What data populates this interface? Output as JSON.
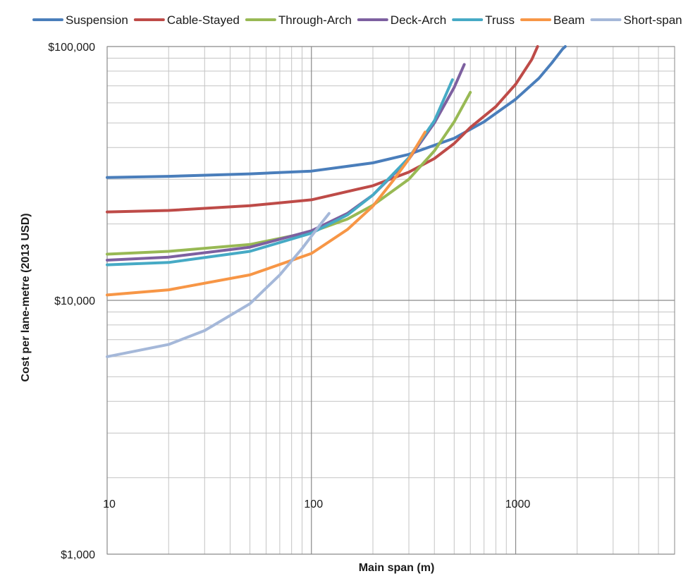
{
  "chart_data": {
    "type": "line",
    "xlabel": "Main span (m)",
    "ylabel": "Cost per lane-metre (2013 USD)",
    "x_scale": "log",
    "y_scale": "log",
    "xlim": [
      10,
      6000
    ],
    "ylim": [
      1000,
      100000
    ],
    "x_ticks": [
      {
        "value": 10,
        "label": "10"
      },
      {
        "value": 100,
        "label": "100"
      },
      {
        "value": 1000,
        "label": "1000"
      }
    ],
    "y_ticks": [
      {
        "value": 1000,
        "label": "$1,000"
      },
      {
        "value": 10000,
        "label": "$10,000"
      },
      {
        "value": 100000,
        "label": "$100,000"
      }
    ],
    "grid": true,
    "legend_position": "top",
    "series": [
      {
        "name": "Suspension",
        "color": "#4a7ebb",
        "points": [
          [
            10,
            30500
          ],
          [
            20,
            30800
          ],
          [
            50,
            31500
          ],
          [
            100,
            32300
          ],
          [
            200,
            34800
          ],
          [
            300,
            37600
          ],
          [
            500,
            43500
          ],
          [
            700,
            50500
          ],
          [
            1000,
            62000
          ],
          [
            1300,
            75000
          ],
          [
            1500,
            86000
          ],
          [
            1700,
            98000
          ],
          [
            1750,
            100000
          ]
        ]
      },
      {
        "name": "Cable-Stayed",
        "color": "#be4b48",
        "points": [
          [
            10,
            22300
          ],
          [
            20,
            22600
          ],
          [
            50,
            23600
          ],
          [
            100,
            24900
          ],
          [
            200,
            28300
          ],
          [
            300,
            32000
          ],
          [
            400,
            36200
          ],
          [
            500,
            41500
          ],
          [
            600,
            48000
          ],
          [
            800,
            58000
          ],
          [
            1000,
            71000
          ],
          [
            1200,
            89000
          ],
          [
            1280,
            100000
          ]
        ]
      },
      {
        "name": "Through-Arch",
        "color": "#98b954",
        "points": [
          [
            10,
            15200
          ],
          [
            20,
            15600
          ],
          [
            50,
            16600
          ],
          [
            100,
            18600
          ],
          [
            150,
            20900
          ],
          [
            200,
            23700
          ],
          [
            300,
            30000
          ],
          [
            400,
            38800
          ],
          [
            500,
            50500
          ],
          [
            600,
            66000
          ]
        ]
      },
      {
        "name": "Deck-Arch",
        "color": "#7d60a0",
        "points": [
          [
            10,
            14400
          ],
          [
            20,
            14800
          ],
          [
            50,
            16200
          ],
          [
            100,
            18800
          ],
          [
            150,
            22000
          ],
          [
            200,
            26000
          ],
          [
            300,
            36000
          ],
          [
            400,
            50000
          ],
          [
            500,
            69000
          ],
          [
            560,
            85000
          ]
        ]
      },
      {
        "name": "Truss",
        "color": "#46aac5",
        "points": [
          [
            10,
            13800
          ],
          [
            20,
            14100
          ],
          [
            50,
            15600
          ],
          [
            100,
            18400
          ],
          [
            150,
            21700
          ],
          [
            200,
            26000
          ],
          [
            300,
            36500
          ],
          [
            400,
            51000
          ],
          [
            490,
            74000
          ]
        ]
      },
      {
        "name": "Beam",
        "color": "#f79646",
        "points": [
          [
            10,
            10500
          ],
          [
            20,
            11000
          ],
          [
            50,
            12600
          ],
          [
            100,
            15300
          ],
          [
            150,
            19000
          ],
          [
            200,
            23500
          ],
          [
            250,
            29500
          ],
          [
            300,
            36000
          ],
          [
            360,
            46000
          ]
        ]
      },
      {
        "name": "Short-span",
        "color": "#a5b8d9",
        "points": [
          [
            10,
            6000
          ],
          [
            20,
            6700
          ],
          [
            30,
            7600
          ],
          [
            50,
            9700
          ],
          [
            70,
            12600
          ],
          [
            90,
            16000
          ],
          [
            110,
            19800
          ],
          [
            122,
            22000
          ]
        ]
      }
    ]
  }
}
